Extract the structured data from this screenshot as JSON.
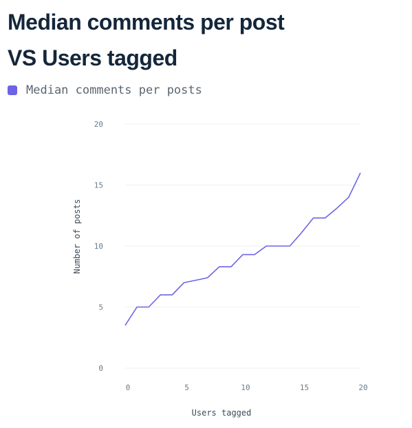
{
  "chart_data": {
    "type": "line",
    "title": "Median comments per post VS Users tagged",
    "xlabel": "Users tagged",
    "ylabel": "Number of posts",
    "xlim": [
      0,
      20
    ],
    "ylim": [
      0,
      20
    ],
    "x_ticks": [
      "0",
      "5",
      "10",
      "15",
      "20"
    ],
    "y_ticks": [
      "0",
      "5",
      "10",
      "15",
      "20"
    ],
    "grid": true,
    "legend_position": "top-left",
    "series": [
      {
        "name": "Median comments per posts",
        "color": "#6c63e8",
        "x": [
          0,
          1,
          2,
          3,
          4,
          5,
          6,
          7,
          8,
          9,
          10,
          11,
          12,
          13,
          14,
          15,
          16,
          17,
          18,
          19,
          20
        ],
        "y": [
          3.5,
          5.0,
          5.0,
          6.0,
          6.0,
          7.0,
          7.2,
          7.4,
          8.3,
          8.3,
          9.3,
          9.3,
          10.0,
          10.0,
          10.0,
          11.1,
          12.3,
          12.3,
          13.1,
          14.0,
          16.0
        ]
      }
    ]
  }
}
